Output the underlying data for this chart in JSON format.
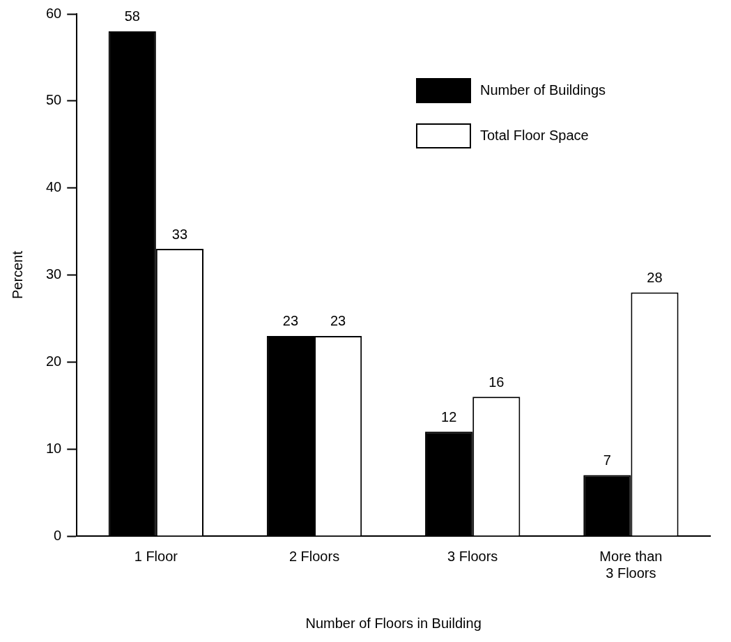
{
  "chart_data": {
    "type": "bar",
    "xlabel": "Number of Floors in Building",
    "ylabel": "Percent",
    "categories": [
      "1 Floor",
      "2 Floors",
      "3 Floors",
      "More than 3 Floors"
    ],
    "series": [
      {
        "name": "Number of Buildings",
        "color": "#000000",
        "values": [
          58,
          23,
          12,
          7
        ]
      },
      {
        "name": "Total Floor Space",
        "color": "#ffffff",
        "values": [
          33,
          23,
          16,
          28
        ]
      }
    ],
    "ylim": [
      0,
      60
    ],
    "yticks": [
      0,
      10,
      20,
      30,
      40,
      50,
      60
    ],
    "grid": false,
    "legend": "top right",
    "data_labels": true
  }
}
